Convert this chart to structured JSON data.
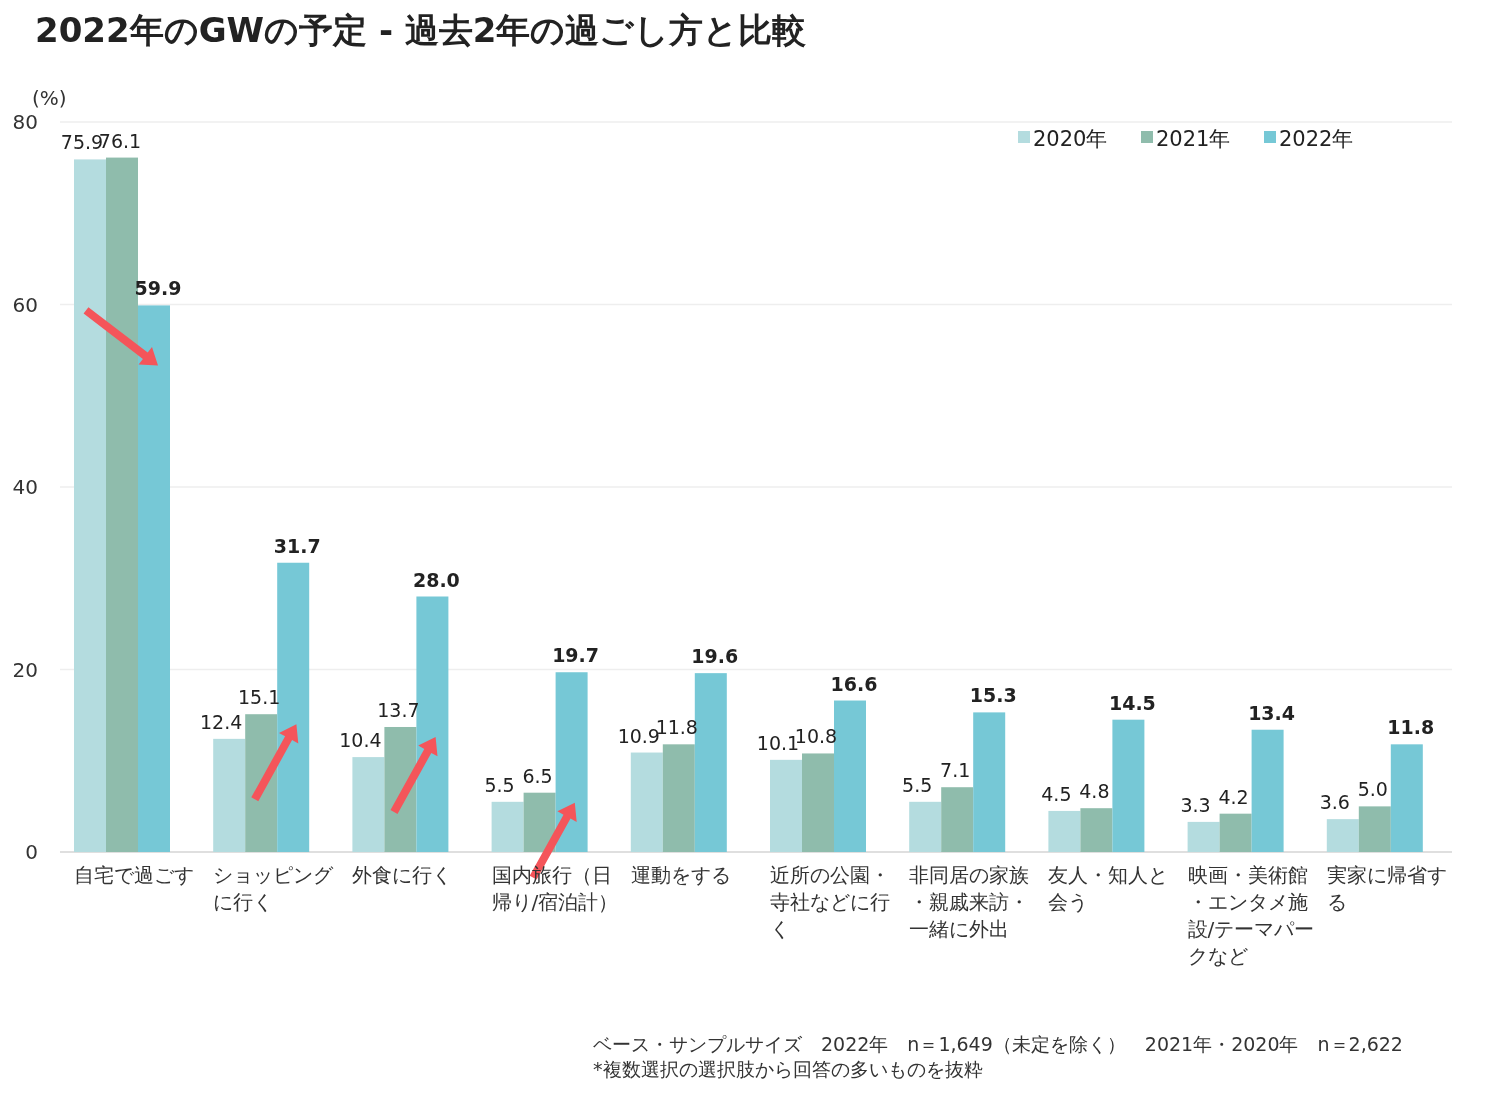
{
  "chart_data": {
    "type": "bar",
    "title": "2022年のGWの予定 - 過去2年の過ごし方と比較",
    "ylabel": "(%)",
    "categories": [
      "自宅で過ごす",
      "ショッピングに行く",
      "外食に行く",
      "国内旅行（日帰り/宿泊計）",
      "運動をする",
      "近所の公園・寺社などに行く",
      "非同居の家族・親戚来訪・一緒に外出",
      "友人・知人と会う",
      "映画・美術館・エンタメ施設/テーマパークなど",
      "実家に帰省する"
    ],
    "series": [
      {
        "name": "2020年",
        "color": "#b4dcdf",
        "values": [
          75.9,
          12.4,
          10.4,
          5.5,
          10.9,
          10.1,
          5.5,
          4.5,
          3.3,
          3.6
        ],
        "value_labels": [
          "75.9",
          "12.4",
          "10.4",
          "5.5",
          "10.9",
          "10.1",
          "5.5",
          "4.5",
          "3.3",
          "3.6"
        ]
      },
      {
        "name": "2021年",
        "color": "#8fbcac",
        "values": [
          76.1,
          15.1,
          13.7,
          6.5,
          11.8,
          10.8,
          7.1,
          4.8,
          4.2,
          5.0
        ],
        "value_labels": [
          "76.1",
          "15.1",
          "13.7",
          "6.5",
          "11.8",
          "10.8",
          "7.1",
          "4.8",
          "4.2",
          "5.0"
        ]
      },
      {
        "name": "2022年",
        "color": "#76c8d6",
        "values": [
          59.9,
          31.7,
          28.0,
          19.7,
          19.6,
          16.6,
          15.3,
          14.5,
          13.4,
          11.8
        ],
        "value_labels": [
          "59.9",
          "31.7",
          "28.0",
          "19.7",
          "19.6",
          "16.6",
          "15.3",
          "14.5",
          "13.4",
          "11.8"
        ]
      }
    ],
    "ylim": [
      0,
      80
    ],
    "yticks": [
      0,
      20,
      40,
      60,
      80
    ],
    "grid": "y",
    "legend": "top right",
    "annotations": [
      "ベース・サンプルサイズ　2022年　n＝1,649（未定を除く）　2021年・2020年　n＝2,622",
      "*複数選択の選択肢から回答の多いものを抜粋"
    ]
  }
}
